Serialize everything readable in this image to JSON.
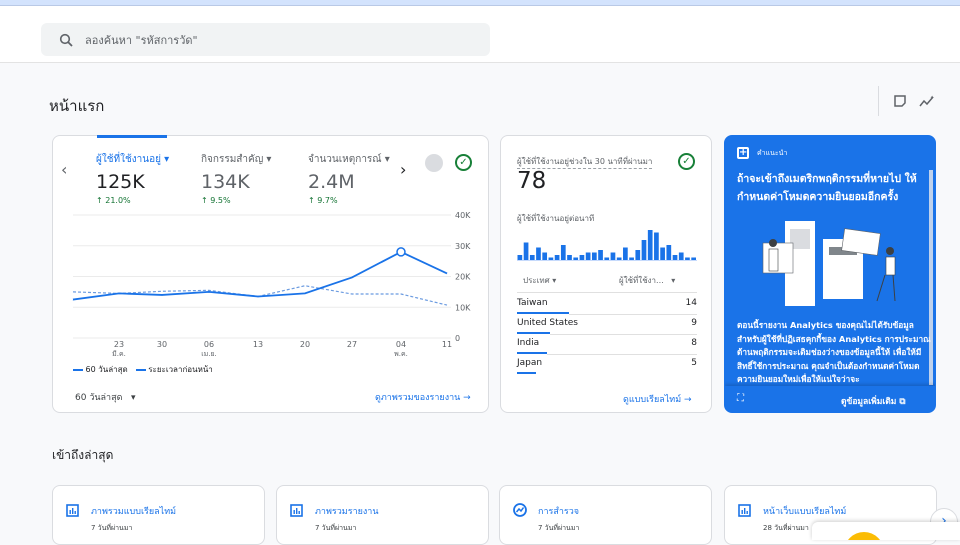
{
  "search": {
    "placeholder": "ลองค้นหา \"รหัสการวัด\""
  },
  "page": {
    "title": "หน้าแรก"
  },
  "overview": {
    "metrics": [
      {
        "label": "ผู้ใช้ที่ใช้งานอยู่",
        "value": "125K",
        "change": "↑ 21.0%",
        "active": true
      },
      {
        "label": "กิจกรรมสำคัญ",
        "value": "134K",
        "change": "↑ 9.5%"
      },
      {
        "label": "จำนวนเหตุการณ์",
        "value": "2.4M",
        "change": "↑ 9.7%"
      }
    ],
    "legend": {
      "current": "60 วันล่าสุด",
      "previous": "ระยะเวลาก่อนหน้า"
    },
    "range_select": "60 วันล่าสุด",
    "view_link": "ดูภาพรวมของรายงาน"
  },
  "chart_data": {
    "type": "line",
    "x": [
      "",
      "23 มี.ค.",
      "30",
      "06 เม.ย.",
      "13",
      "20",
      "27",
      "04 พ.ค.",
      "11"
    ],
    "xtick_labels": [
      {
        "day": "23",
        "month": "มี.ค."
      },
      {
        "day": "30",
        "month": ""
      },
      {
        "day": "06",
        "month": "เม.ย."
      },
      {
        "day": "13",
        "month": ""
      },
      {
        "day": "20",
        "month": ""
      },
      {
        "day": "27",
        "month": ""
      },
      {
        "day": "04",
        "month": "พ.ค."
      },
      {
        "day": "11",
        "month": ""
      }
    ],
    "yticks": [
      "0",
      "10K",
      "20K",
      "30K",
      "40K"
    ],
    "ylim": [
      0,
      40000
    ],
    "grid": true,
    "legend_position": "bottom-left",
    "series": [
      {
        "name": "60 วันล่าสุด",
        "style": "solid",
        "color": "#1a73e8",
        "values": [
          12500,
          14500,
          14000,
          15000,
          13500,
          14500,
          19700,
          28000,
          21000
        ]
      },
      {
        "name": "ระยะเวลาก่อนหน้า",
        "style": "dashed",
        "color": "#6b9be0",
        "values": [
          15000,
          14500,
          15200,
          15500,
          13500,
          17000,
          14300,
          14300,
          10700
        ]
      }
    ]
  },
  "realtime": {
    "label": "ผู้ใช้ที่ใช้งานอยู่ช่วงใน 30 นาทีที่ผ่านมา",
    "value": "78",
    "per_minute_label": "ผู้ใช้ที่ใช้งานอยู่ต่อนาที",
    "per_minute": [
      2,
      7,
      2,
      5,
      3,
      1,
      2,
      6,
      2,
      1,
      2,
      3,
      3,
      4,
      1,
      3,
      1,
      5,
      1,
      4,
      8,
      12,
      11,
      5,
      6,
      2,
      3,
      1,
      1
    ],
    "col_country": "ประเทศ",
    "col_users": "ผู้ใช้ที่ใช้งา...",
    "rows": [
      {
        "country": "Taiwan",
        "users": "14",
        "share": 1.0
      },
      {
        "country": "United States",
        "users": "9",
        "share": 0.64
      },
      {
        "country": "India",
        "users": "8",
        "share": 0.57
      },
      {
        "country": "Japan",
        "users": "5",
        "share": 0.36
      }
    ],
    "view_link": "ดูแบบเรียลไทม์"
  },
  "insight": {
    "tag": "คำแนะนำ",
    "headline": "ถ้าจะเข้าถึงเมตริกพฤติกรรมที่หายไป ให้กำหนดค่าโหมดความยินยอมอีกครั้ง",
    "body": "ตอนนี้รายงาน Analytics ของคุณไม่ได้รับข้อมูลสำหรับผู้ใช้ที่ปฏิเสธคุกกี้ของ Analytics การประมาณด้านพฤติกรรมจะเติมช่องว่างของข้อมูลนี้ให้ เพื่อให้มีสิทธิ์ใช้การประมาณ คุณจำเป็นต้องกำหนดค่าโหมดความยินยอมใหม่เพื่อให้แน่ใจว่าจะ",
    "more_link": "ดูข้อมูลเพิ่มเติม",
    "color": "#1a73e8"
  },
  "recent": {
    "title": "เข้าถึงล่าสุด",
    "items": [
      {
        "title": "ภาพรวมแบบเรียลไทม์",
        "sub": "7 วันที่ผ่านมา",
        "icon": "report-icon"
      },
      {
        "title": "ภาพรวมรายงาน",
        "sub": "7 วันที่ผ่านมา",
        "icon": "report-icon"
      },
      {
        "title": "การสำรวจ",
        "sub": "7 วันที่ผ่านมา",
        "icon": "explore-icon"
      },
      {
        "title": "หน้าเว็บแบบเรียลไทม์",
        "sub": "28 วันที่ผ่านมา",
        "icon": "report-icon"
      }
    ]
  }
}
